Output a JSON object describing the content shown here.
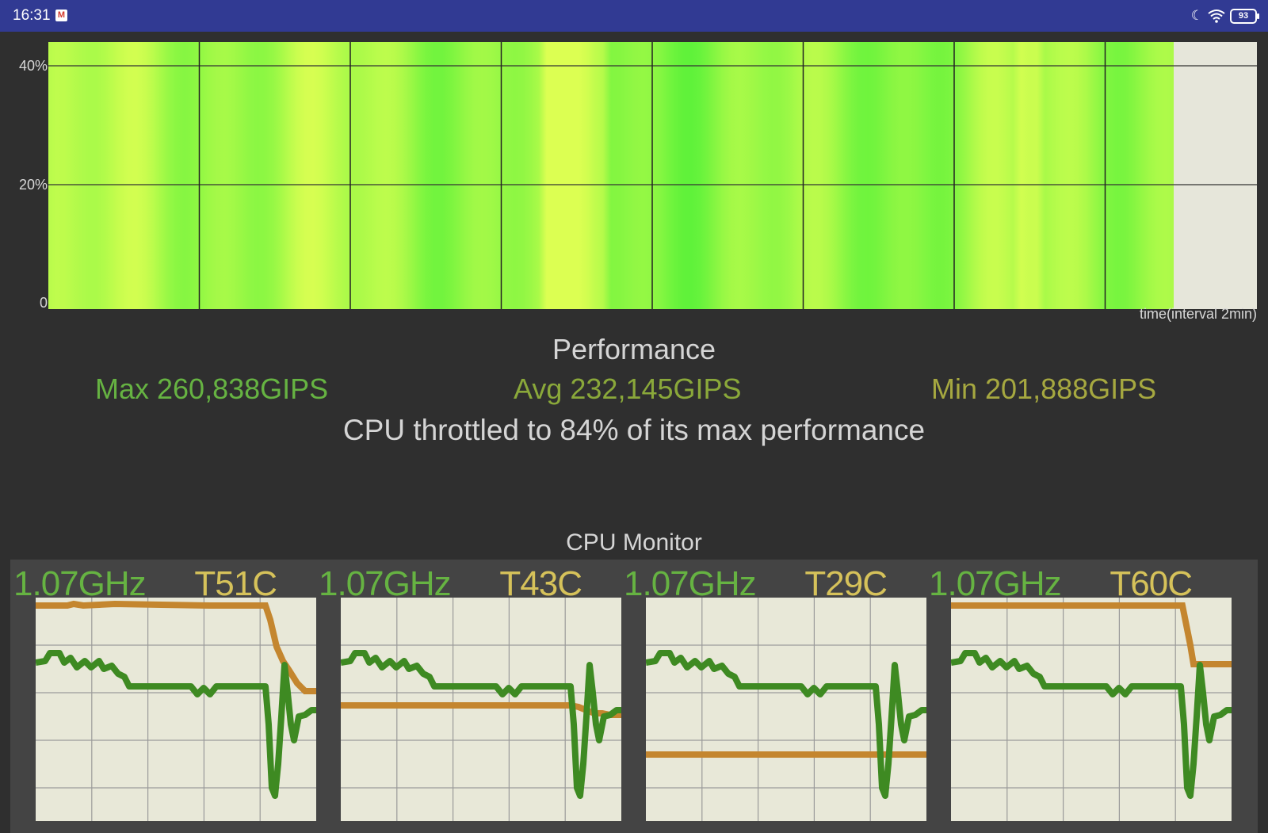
{
  "status_bar": {
    "time": "16:31",
    "mail_icon": "M",
    "battery": "93"
  },
  "performance_chart": {
    "y_ticks": [
      "40%",
      "20%",
      "0"
    ],
    "time_label": "time(interval 2min)",
    "colors": {
      "low": "#5ef23a",
      "high": "#dcff52",
      "empty": "#e6e6da"
    }
  },
  "performance": {
    "title": "Performance",
    "max": "Max 260,838GIPS",
    "avg": "Avg 232,145GIPS",
    "min": "Min 201,888GIPS",
    "throttle_message": "CPU throttled to 84% of its max performance"
  },
  "cpu_monitor": {
    "title": "CPU Monitor",
    "cores": [
      {
        "freq": "1.07GHz",
        "temp": "T51C"
      },
      {
        "freq": "1.07GHz",
        "temp": "T43C"
      },
      {
        "freq": "1.07GHz",
        "temp": "T29C"
      },
      {
        "freq": "1.07GHz",
        "temp": "T60C"
      }
    ],
    "colors": {
      "freq_line": "#3e8a22",
      "temp_line": "#c4862f",
      "plot_bg": "#e8e8d8",
      "grid": "#9a9a9a"
    }
  }
}
